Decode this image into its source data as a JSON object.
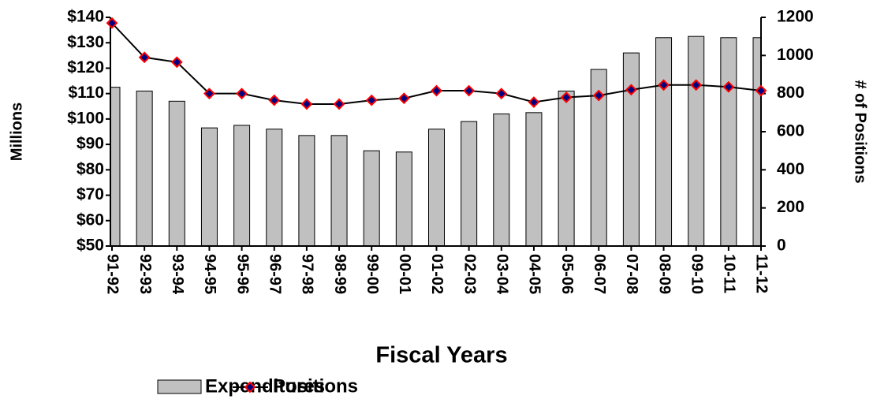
{
  "chart_data": {
    "type": "bar_line",
    "xlabel": "Fiscal Years",
    "ylabel": "Millions",
    "y2label": "# of Positions",
    "categories": [
      "91-92",
      "92-93",
      "93-94",
      "94-95",
      "95-96",
      "96-97",
      "97-98",
      "98-99",
      "99-00",
      "00-01",
      "01-02",
      "02-03",
      "03-04",
      "04-05",
      "05-06",
      "06-07",
      "07-08",
      "08-09",
      "09-10",
      "10-11",
      "11-12"
    ],
    "series": [
      {
        "name": "Expenditures",
        "color": "#c0c0c0",
        "type": "bar",
        "values": [
          112.5,
          111,
          107,
          96.5,
          97.5,
          96,
          93.5,
          93.5,
          87.5,
          87,
          96,
          99,
          102,
          102.5,
          111,
          119.5,
          126,
          132,
          132.5,
          132,
          132
        ]
      },
      {
        "name": "Positions",
        "color": "#ff0000",
        "type": "line",
        "axis": "y2",
        "values": [
          1170,
          990,
          965,
          800,
          800,
          765,
          745,
          745,
          765,
          775,
          815,
          815,
          800,
          755,
          780,
          790,
          820,
          845,
          845,
          835,
          815
        ]
      }
    ],
    "ylim": [
      50,
      140
    ],
    "yticks": [
      {
        "value": 50,
        "label": "$50"
      },
      {
        "value": 60,
        "label": "$60"
      },
      {
        "value": 70,
        "label": "$70"
      },
      {
        "value": 80,
        "label": "$80"
      },
      {
        "value": 90,
        "label": "$90"
      },
      {
        "value": 100,
        "label": "$100"
      },
      {
        "value": 110,
        "label": "$110"
      },
      {
        "value": 120,
        "label": "$120"
      },
      {
        "value": 130,
        "label": "$130"
      },
      {
        "value": 140,
        "label": "$140"
      }
    ],
    "y2lim": [
      0,
      1200
    ],
    "y2ticks": [
      0,
      200,
      400,
      600,
      800,
      1000,
      1200
    ],
    "legend": "bottom"
  }
}
